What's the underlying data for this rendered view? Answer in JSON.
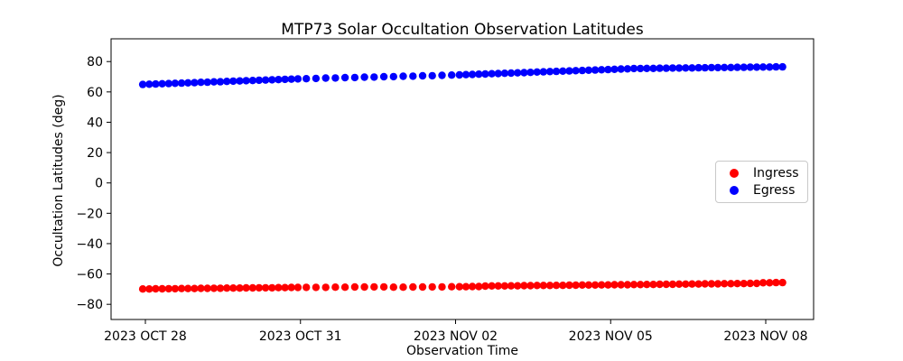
{
  "chart_data": {
    "type": "scatter",
    "title": "MTP73 Solar Occultation Observation Latitudes",
    "xlabel": "Observation Time",
    "ylabel": "Occultation Latitudes (deg)",
    "x_tick_labels": [
      "2023 OCT 28",
      "2023 OCT 31",
      "2023 NOV 02",
      "2023 NOV 05",
      "2023 NOV 08"
    ],
    "x_tick_days": [
      0,
      3,
      5,
      8,
      11
    ],
    "y_ticks": [
      80,
      60,
      40,
      20,
      0,
      -20,
      -40,
      -60,
      -80
    ],
    "ylim": [
      -90,
      95
    ],
    "grid": false,
    "x_unit": "days relative to 2023 OCT 28 tick",
    "legend": {
      "position": "center right",
      "items": [
        {
          "label": "Ingress",
          "color": "#ff0000"
        },
        {
          "label": "Egress",
          "color": "#0000ff"
        }
      ]
    },
    "series": [
      {
        "name": "Ingress",
        "color": "#ff0000",
        "marker": "circle",
        "x_start_day": -0.05,
        "x_step_day": 0.125,
        "lat_deg": [
          -69.9,
          -69.9,
          -69.8,
          -69.8,
          -69.7,
          -69.7,
          -69.6,
          -69.6,
          -69.6,
          -69.5,
          -69.5,
          -69.4,
          -69.4,
          -69.3,
          -69.3,
          -69.3,
          -69.2,
          -69.2,
          -69.1,
          -69.1,
          -69.1,
          -69.0,
          -69.0,
          -68.9,
          -68.9,
          -68.8,
          -68.8,
          -68.8,
          -68.7,
          -68.7,
          -68.6,
          -68.6,
          -68.5,
          -68.5,
          -68.7,
          -68.7,
          -68.6,
          -68.6,
          -68.5,
          -68.5,
          -68.4,
          -68.4,
          -68.4,
          -68.3,
          -68.3,
          -68.0,
          -67.9,
          -67.9,
          -67.9,
          -67.8,
          -67.8,
          -67.7,
          -67.7,
          -67.6,
          -67.6,
          -67.6,
          -67.5,
          -67.5,
          -67.4,
          -67.4,
          -67.3,
          -67.3,
          -67.3,
          -67.2,
          -67.2,
          -67.1,
          -67.1,
          -67.1,
          -67.0,
          -67.0,
          -66.9,
          -66.9,
          -66.8,
          -66.8,
          -66.8,
          -66.7,
          -66.7,
          -66.6,
          -66.6,
          -66.5,
          -66.5,
          -66.5,
          -66.4,
          -66.4,
          -66.3,
          -66.3,
          -66.2,
          -66.2,
          -65.8,
          -65.8,
          -65.7,
          -65.7
        ]
      },
      {
        "name": "Egress",
        "color": "#0000ff",
        "marker": "circle",
        "x_start_day": -0.05,
        "x_step_day": 0.125,
        "lat_deg": [
          64.9,
          65.1,
          65.2,
          65.4,
          65.5,
          65.7,
          65.8,
          66.0,
          66.1,
          66.3,
          66.4,
          66.6,
          66.7,
          66.9,
          67.1,
          67.2,
          67.4,
          67.5,
          67.7,
          67.8,
          68.0,
          68.1,
          68.3,
          68.4,
          68.6,
          68.7,
          68.9,
          69.1,
          69.2,
          69.4,
          69.5,
          69.7,
          69.8,
          70.0,
          70.1,
          70.3,
          70.4,
          70.6,
          70.7,
          70.9,
          71.1,
          71.2,
          71.4,
          71.5,
          71.7,
          71.8,
          72.0,
          72.1,
          72.3,
          72.4,
          72.6,
          72.7,
          72.9,
          73.1,
          73.2,
          73.4,
          73.5,
          73.7,
          73.8,
          74.0,
          74.1,
          74.3,
          74.4,
          74.6,
          74.7,
          74.9,
          75.1,
          75.2,
          75.4,
          75.4,
          75.5,
          75.5,
          75.6,
          75.6,
          75.7,
          75.7,
          75.8,
          75.8,
          75.9,
          75.9,
          76.0,
          76.0,
          76.1,
          76.1,
          76.2,
          76.2,
          76.3,
          76.3,
          76.4,
          76.4,
          76.5,
          76.5
        ]
      }
    ]
  }
}
